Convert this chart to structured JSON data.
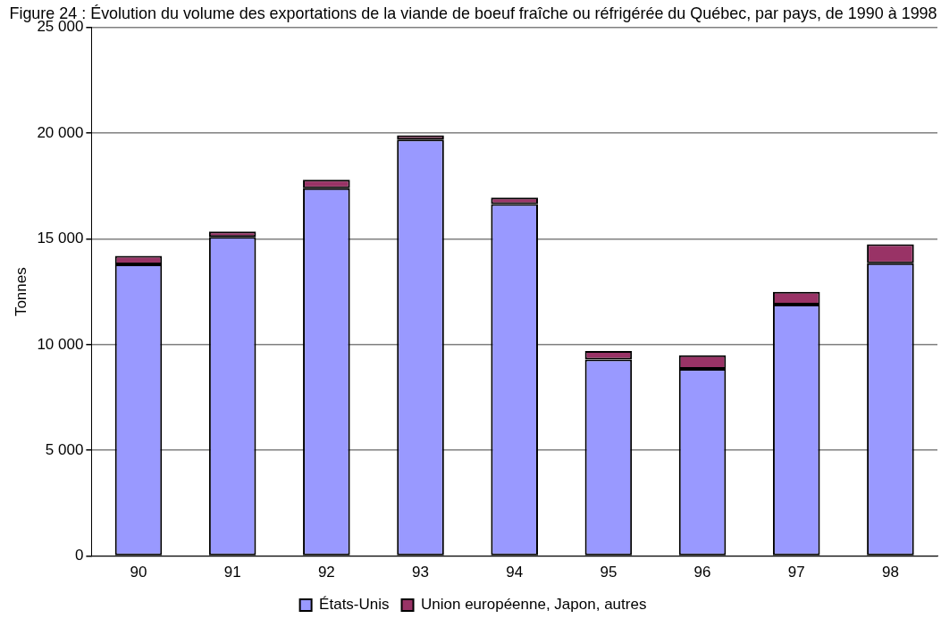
{
  "chart_data": {
    "type": "bar",
    "title": "Figure 24 : Évolution du volume des exportations de la viande de boeuf fraîche ou réfrigérée du Québec, par pays, de 1990 à 1998",
    "ylabel": "Tonnes",
    "categories": [
      "90",
      "91",
      "92",
      "93",
      "94",
      "95",
      "96",
      "97",
      "98"
    ],
    "stacked": true,
    "series": [
      {
        "name": "États-Unis",
        "color": "#9999ff",
        "values": [
          13800,
          15100,
          17400,
          19700,
          16650,
          9300,
          8850,
          11900,
          13850
        ]
      },
      {
        "name": "Union européenne, Japon, autres",
        "color": "#993366",
        "values": [
          400,
          250,
          400,
          200,
          300,
          400,
          650,
          600,
          900
        ]
      }
    ],
    "ylim": [
      0,
      25000
    ],
    "yticks": [
      {
        "value": 0,
        "label": "0"
      },
      {
        "value": 5000,
        "label": "5 000"
      },
      {
        "value": 10000,
        "label": "10 000"
      },
      {
        "value": 15000,
        "label": "15 000"
      },
      {
        "value": 20000,
        "label": "20 000"
      },
      {
        "value": 25000,
        "label": "25 000"
      }
    ],
    "grid": "y",
    "legend": "bottom"
  }
}
